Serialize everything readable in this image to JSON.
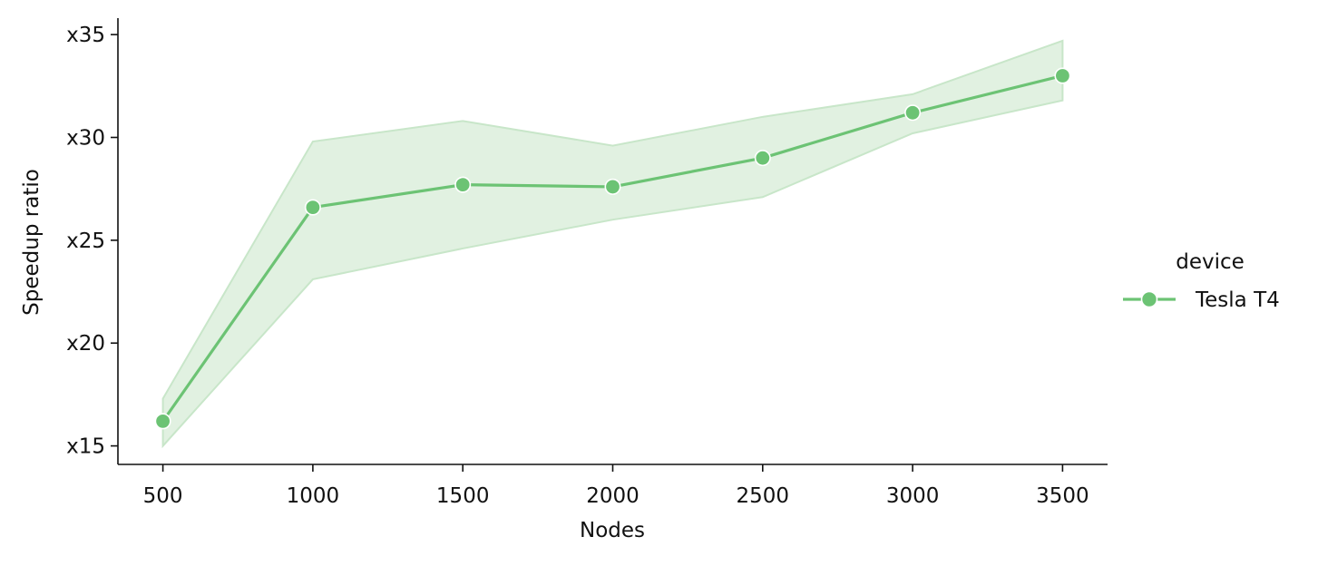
{
  "chart_data": {
    "type": "line",
    "xlabel": "Nodes",
    "ylabel": "Speedup ratio",
    "x": [
      500,
      1000,
      1500,
      2000,
      2500,
      3000,
      3500
    ],
    "x_ticks": [
      500,
      1000,
      1500,
      2000,
      2500,
      3000,
      3500
    ],
    "y_ticks": [
      15,
      20,
      25,
      30,
      35
    ],
    "y_tick_labels": [
      "x15",
      "x20",
      "x25",
      "x30",
      "x35"
    ],
    "xlim": [
      350,
      3650
    ],
    "ylim": [
      14.1,
      35.8
    ],
    "grid": false,
    "legend": {
      "title": "device",
      "placement": "right"
    },
    "series": [
      {
        "name": "Tesla T4",
        "color": "#6cc374",
        "band_color": "#c8e6c9",
        "marker": "circle",
        "values": [
          16.2,
          26.6,
          27.7,
          27.6,
          29.0,
          31.2,
          33.0
        ],
        "ci_lower": [
          15.0,
          23.1,
          24.6,
          26.0,
          27.1,
          30.2,
          31.8
        ],
        "ci_upper": [
          17.3,
          29.8,
          30.8,
          29.6,
          31.0,
          32.1,
          34.7
        ]
      }
    ]
  }
}
